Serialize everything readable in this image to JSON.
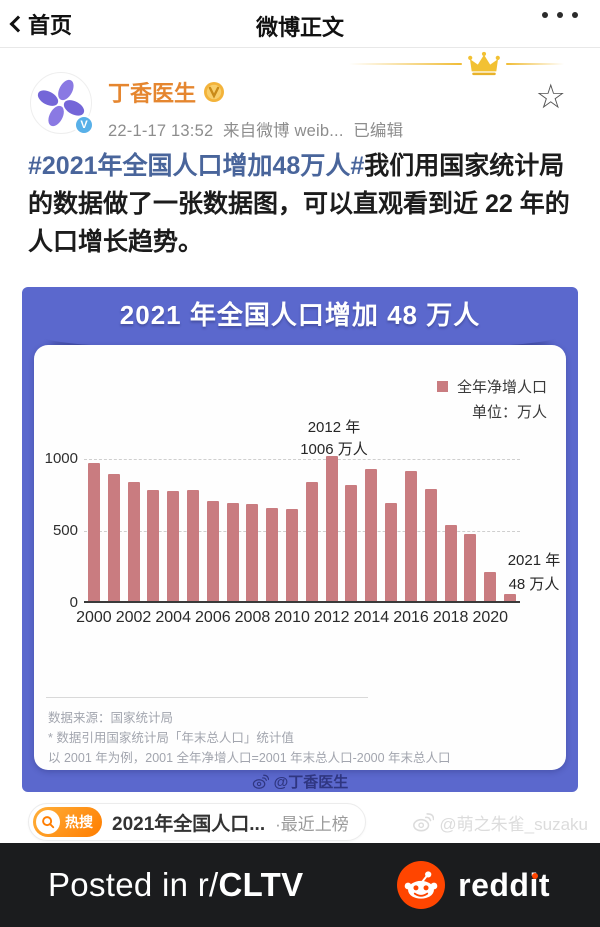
{
  "nav": {
    "back_label": "首页",
    "title": "微博正文"
  },
  "post": {
    "author": "丁香医生",
    "timestamp": "22-1-17 13:52",
    "source": "来自微博 weib...",
    "edited": "已编辑",
    "hashtag": "#2021年全国人口增加48万人#",
    "body": "我们用国家统计局的数据做了一张数据图，可以直观看到近 22 年的人口增长趋势。"
  },
  "chart": {
    "title": "2021 年全国人口增加 48 万人",
    "legend": "全年净增人口",
    "unit_label": "单位：万人",
    "peak_annotation_line1": "2012 年",
    "peak_annotation_line2": "1006 万人",
    "last_annotation_line1": "2021 年",
    "last_annotation_line2": "48 万人",
    "source_line1": "数据来源：国家统计局",
    "source_line2": "* 数据引用国家统计局「年末总人口」统计值",
    "source_line3": "以 2001 年为例，2001 全年净增人口=2001 年末总人口-2000 年末总人口",
    "credit": "@丁香医生"
  },
  "chart_data": {
    "type": "bar",
    "title": "2021 年全国人口增加 48 万人",
    "series_name": "全年净增人口",
    "unit": "万人",
    "categories": [
      2000,
      2001,
      2002,
      2003,
      2004,
      2005,
      2006,
      2007,
      2008,
      2009,
      2010,
      2011,
      2012,
      2013,
      2014,
      2015,
      2016,
      2017,
      2018,
      2019,
      2020,
      2021
    ],
    "values": [
      957,
      884,
      826,
      774,
      761,
      768,
      692,
      681,
      673,
      648,
      641,
      825,
      1006,
      804,
      920,
      680,
      906,
      779,
      530,
      467,
      204,
      48
    ],
    "ylim": [
      0,
      1000
    ],
    "yticks": [
      0,
      500,
      1000
    ],
    "xtick_step": 2,
    "grid": "dashed horizontal",
    "legend_position": "top-right",
    "bar_color": "#c97c80",
    "annotations": [
      {
        "x": 2012,
        "text": "2012 年 1006 万人"
      },
      {
        "x": 2021,
        "text": "2021 年 48 万人"
      }
    ]
  },
  "hot_search": {
    "badge": "热搜",
    "text": "2021年全国人口...",
    "suffix": "·最近上榜"
  },
  "watermark": "@萌之朱雀_suzaku",
  "banner": {
    "posted_prefix": "Posted in r/",
    "subreddit": "CLTV",
    "brand": "reddit"
  },
  "colors": {
    "username_orange": "#e5862f",
    "hashtag_blue": "#49659b",
    "chart_background_blue": "#5b68cd",
    "bar_rose": "#c97c80",
    "reddit_orange": "#ff4500",
    "banner_dark": "#1b1c1e",
    "hot_badge_orange": "#ff7d00"
  }
}
